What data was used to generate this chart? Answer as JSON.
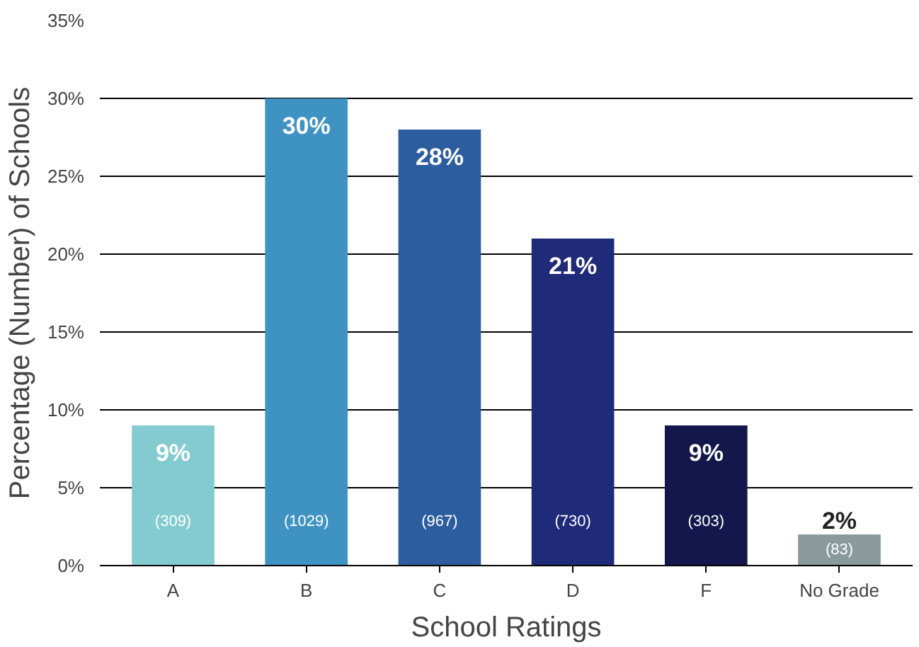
{
  "chart_data": {
    "type": "bar",
    "xlabel": "School Ratings",
    "ylabel": "Percentage (Number) of Schools",
    "categories": [
      "A",
      "B",
      "C",
      "D",
      "F",
      "No Grade"
    ],
    "values": [
      9,
      30,
      28,
      21,
      9,
      2
    ],
    "colors": [
      "#83cbd0",
      "#3f93c3",
      "#2c5e9f",
      "#1f2a79",
      "#13174b",
      "#8a9a9c"
    ],
    "value_labels": [
      "9%",
      "30%",
      "28%",
      "21%",
      "9%",
      "2%"
    ],
    "annotations": [
      "(309)",
      "(1029)",
      "(967)",
      "(730)",
      "(303)",
      "(83)"
    ],
    "ylim": [
      0,
      35
    ],
    "yticks": [
      {
        "value": 0,
        "label": "0%"
      },
      {
        "value": 5,
        "label": "5%"
      },
      {
        "value": 10,
        "label": "10%"
      },
      {
        "value": 15,
        "label": "15%"
      },
      {
        "value": 20,
        "label": "20%"
      },
      {
        "value": 25,
        "label": "25%"
      },
      {
        "value": 30,
        "label": "30%"
      },
      {
        "value": 35,
        "label": "35%"
      }
    ],
    "grid": "y"
  }
}
